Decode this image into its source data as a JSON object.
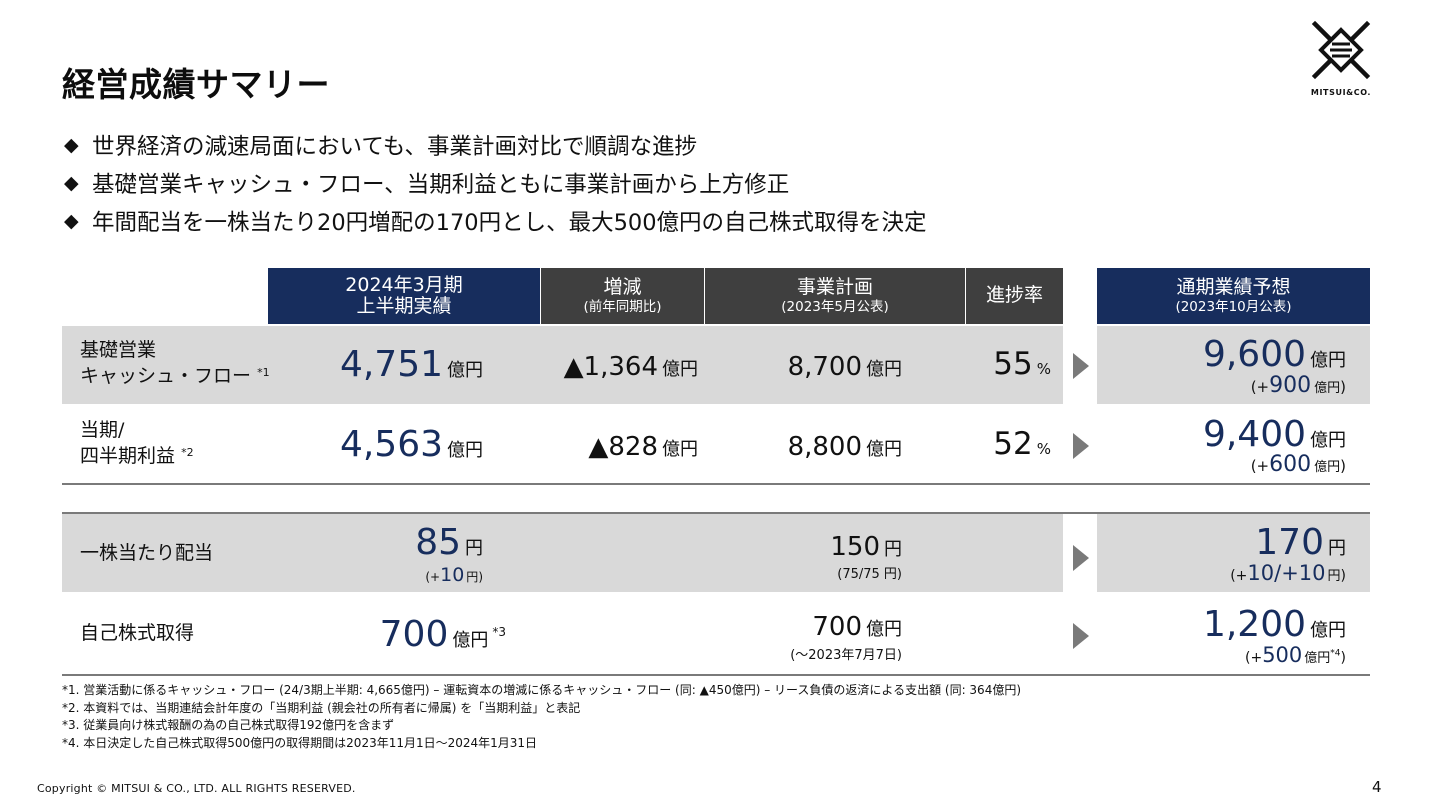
{
  "title": "経営成績サマリー",
  "logo": {
    "text": "MITSUI&CO."
  },
  "bullets": [
    "世界経済の減速局面においても、事業計画対比で順調な進捗",
    "基礎営業キャッシュ・フロー、当期利益ともに事業計画から上方修正",
    "年間配当を一株当たり20円増配の170円とし、最大500億円の自己株式取得を決定"
  ],
  "bullet_marker": "◆",
  "headers": {
    "actual": {
      "line1": "2024年3月期",
      "line2": "上半期実績"
    },
    "change": {
      "line1": "増減",
      "sub": "(前年同期比)"
    },
    "plan": {
      "line1": "事業計画",
      "sub": "(2023年5月公表)"
    },
    "progress": {
      "line1": "進捗率"
    },
    "forecast": {
      "line1": "通期業績予想",
      "sub": "(2023年10月公表)"
    }
  },
  "units": {
    "oku_yen": "億円",
    "yen": "円",
    "percent": "%"
  },
  "rows": {
    "cf": {
      "label1": "基礎営業",
      "label2": "キャッシュ・フロー",
      "note": "*1",
      "actual": "4,751",
      "change": "▲1,364",
      "plan": "8,700",
      "progress": "55",
      "forecast": "9,600",
      "forecast_diff_open": "(+",
      "forecast_diff": "900",
      "forecast_diff_close": ")"
    },
    "profit": {
      "label1": "当期/",
      "label2": "四半期利益",
      "note": "*2",
      "actual": "4,563",
      "change": "▲828",
      "plan": "8,800",
      "progress": "52",
      "forecast": "9,400",
      "forecast_diff_open": "(+",
      "forecast_diff": "600",
      "forecast_diff_close": ")"
    },
    "dividend": {
      "label": "一株当たり配当",
      "actual": "85",
      "actual_diff_open": "(+",
      "actual_diff": "10",
      "actual_diff_close": ")",
      "plan": "150",
      "plan_note": "(75/75 円)",
      "forecast": "170",
      "forecast_diff_open": "(+",
      "forecast_diff": "10/+10",
      "forecast_diff_close": ")"
    },
    "buyback": {
      "label": "自己株式取得",
      "actual": "700",
      "actual_note": "*3",
      "plan": "700",
      "plan_note": "(～2023年7月7日)",
      "forecast": "1,200",
      "forecast_diff_open": "(+",
      "forecast_diff": "500",
      "forecast_note": "*4",
      "forecast_diff_close": ")"
    }
  },
  "footnotes": [
    "*1. 営業活動に係るキャッシュ・フロー (24/3期上半期: 4,665億円) – 運転資本の増減に係るキャッシュ・フロー (同: ▲450億円) – リース負債の返済による支出額 (同: 364億円)",
    "*2. 本資料では、当期連結会計年度の「当期利益 (親会社の所有者に帰属) を「当期利益」と表記",
    "*3. 従業員向け株式報酬の為の自己株式取得192億円を含まず",
    "*4. 本日決定した自己株式取得500億円の取得期間は2023年11月1日～2024年1月31日"
  ],
  "copyright": "Copyright © MITSUI & CO., LTD. ALL RIGHTS RESERVED.",
  "page_number": "4",
  "colors": {
    "navy": "#172d5d",
    "dark_gray": "#3f3f3f",
    "row_gray": "#d9d9d9",
    "arrow_gray": "#7a7a7a"
  }
}
